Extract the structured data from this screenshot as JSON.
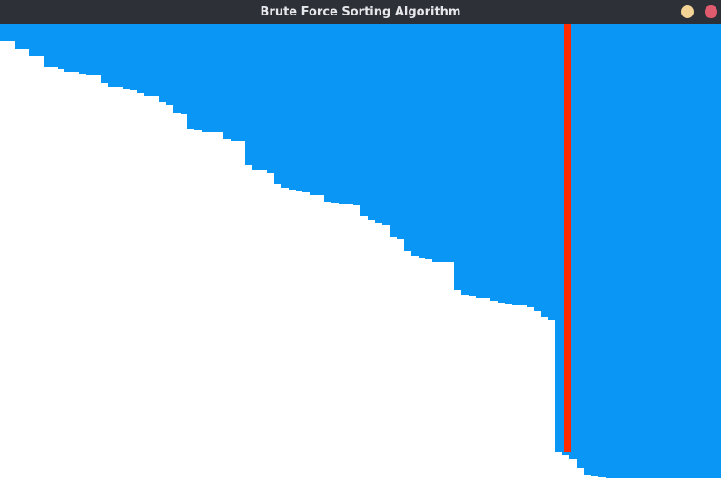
{
  "window": {
    "title": "Brute Force Sorting Algorithm",
    "buttons": [
      {
        "name": "minimize",
        "color": "#f4d496"
      },
      {
        "name": "close",
        "color": "#e15b6f"
      }
    ]
  },
  "chart_data": {
    "type": "bar",
    "orientation": "hanging",
    "bar_color": "#0a96f5",
    "highlight_color": "#ff2a00",
    "highlight_index": 77,
    "max_value": 501,
    "values": [
      18,
      18,
      27,
      27,
      35,
      35,
      47,
      47,
      49,
      52,
      52,
      55,
      56,
      56,
      64,
      69,
      69,
      71,
      72,
      76,
      79,
      79,
      85,
      89,
      98,
      99,
      115,
      116,
      118,
      119,
      119,
      126,
      128,
      128,
      155,
      160,
      160,
      164,
      176,
      180,
      182,
      183,
      185,
      188,
      188,
      196,
      197,
      198,
      198,
      199,
      211,
      215,
      219,
      221,
      234,
      236,
      250,
      255,
      257,
      259,
      262,
      262,
      262,
      293,
      298,
      299,
      302,
      302,
      305,
      307,
      308,
      309,
      309,
      311,
      316,
      322,
      326,
      471,
      474,
      479,
      489,
      497,
      498,
      499,
      500,
      500,
      500,
      500,
      500,
      500,
      500,
      500,
      500,
      500,
      500,
      500,
      500,
      500,
      500,
      500
    ]
  }
}
